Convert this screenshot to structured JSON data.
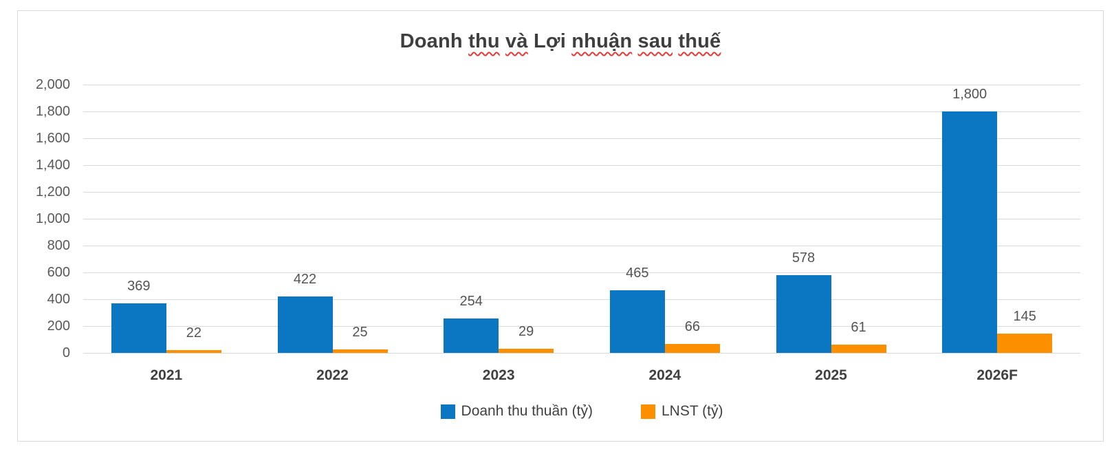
{
  "chart_data": {
    "type": "bar",
    "title": "Doanh thu và Lợi nhuận sau thuế",
    "title_misspelled_words": [
      "thu",
      "và",
      "nhuận",
      "sau",
      "thuế"
    ],
    "categories": [
      "2021",
      "2022",
      "2023",
      "2024",
      "2025",
      "2026F"
    ],
    "series": [
      {
        "name": "Doanh thu thuần (tỷ)",
        "color": "#0b76c2",
        "values": [
          369,
          422,
          254,
          465,
          578,
          1800
        ],
        "labels": [
          "369",
          "422",
          "254",
          "465",
          "578",
          "1,800"
        ]
      },
      {
        "name": "LNST (tỷ)",
        "color": "#fb8f00",
        "values": [
          22,
          25,
          29,
          66,
          61,
          145
        ],
        "labels": [
          "22",
          "25",
          "29",
          "66",
          "61",
          "145"
        ]
      }
    ],
    "xlabel": "",
    "ylabel": "",
    "ylim": [
      0,
      2000
    ],
    "ytick_step": 200,
    "ytick_labels": [
      "0",
      "200",
      "400",
      "600",
      "800",
      "1,000",
      "1,200",
      "1,400",
      "1,600",
      "1,800",
      "2,000"
    ],
    "grid": true,
    "legend_position": "bottom",
    "colors": {
      "gridline": "#d9d9d9",
      "frame_border": "#d7d7d7",
      "title_text": "#3f3f3f",
      "axis_text": "#595959",
      "category_text": "#404040",
      "data_label_text": "#545454",
      "squiggle": "#e53935"
    }
  }
}
